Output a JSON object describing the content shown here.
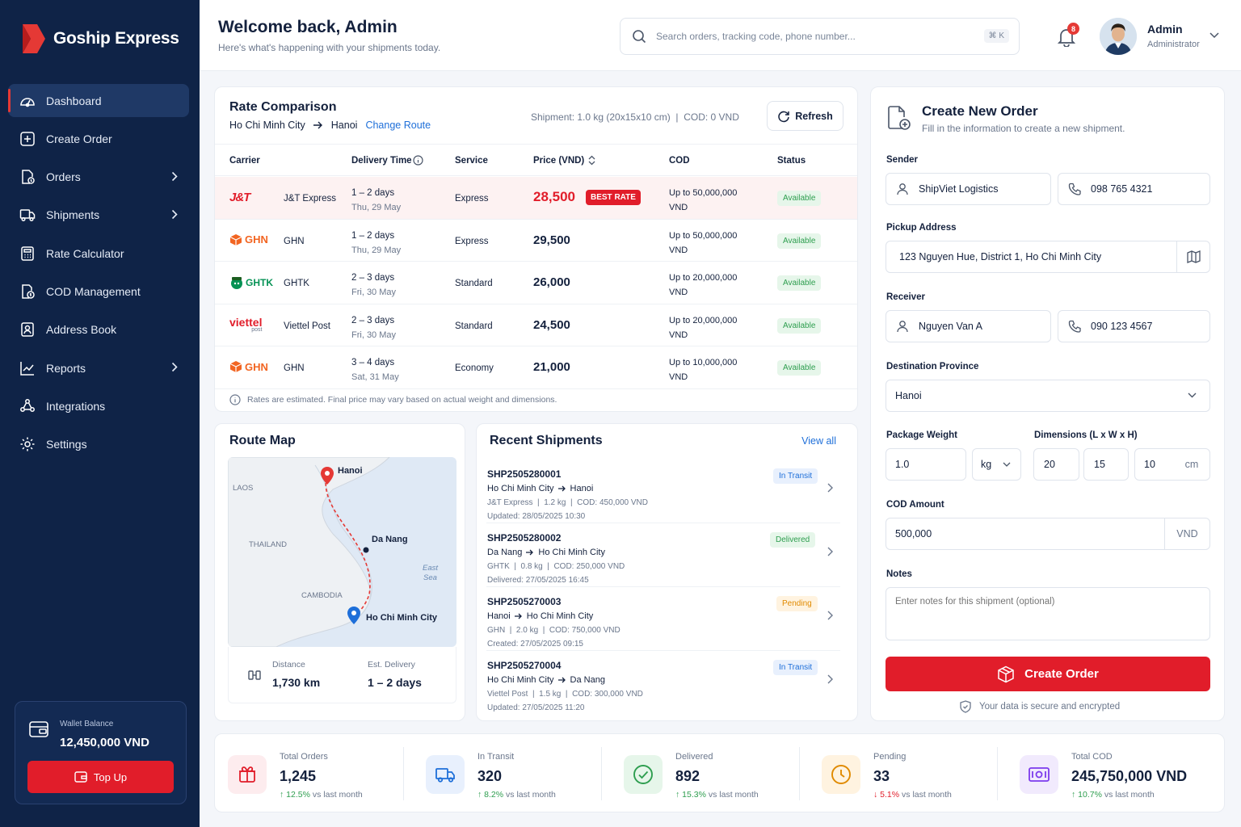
{
  "brand": {
    "name": "Goship Express",
    "accent": "#e11d2a",
    "sidebar_bg": "#0f2347"
  },
  "sidebar": {
    "items": [
      {
        "label": "Dashboard",
        "icon": "dashboard-icon",
        "active": true
      },
      {
        "label": "Create Order",
        "icon": "plus-square-icon"
      },
      {
        "label": "Orders",
        "icon": "orders-icon",
        "chevron": true
      },
      {
        "label": "Shipments",
        "icon": "truck-icon",
        "chevron": true
      },
      {
        "label": "Rate Calculator",
        "icon": "calculator-icon"
      },
      {
        "label": "COD Management",
        "icon": "cod-icon"
      },
      {
        "label": "Address Book",
        "icon": "address-book-icon"
      },
      {
        "label": "Reports",
        "icon": "chart-line-icon",
        "chevron": true
      },
      {
        "label": "Integrations",
        "icon": "integrations-icon"
      },
      {
        "label": "Settings",
        "icon": "gear-icon"
      }
    ],
    "wallet": {
      "label": "Wallet Balance",
      "value": "12,450,000 VND",
      "topup_label": "Top Up"
    }
  },
  "header": {
    "title": "Welcome back, Admin",
    "subtitle": "Here's what's happening with your shipments today.",
    "search_placeholder": "Search orders, tracking code, phone number...",
    "search_shortcut": "⌘ K",
    "notifications": "8",
    "user_name": "Admin",
    "user_role": "Administrator"
  },
  "rate": {
    "title": "Rate Comparison",
    "origin": "Ho Chi Minh City",
    "destination": "Hanoi",
    "change_route": "Change Route",
    "shipment_info": "Shipment: 1.0 kg (20x15x10 cm)  |  COD: 0 VND",
    "refresh_label": "Refresh",
    "columns": {
      "carrier": "Carrier",
      "delivery": "Delivery Time",
      "service": "Service",
      "price": "Price (VND)",
      "cod": "COD",
      "status": "Status"
    },
    "best_label": "BEST RATE",
    "rows": [
      {
        "carrier": "J&T Express",
        "logo": "J&T",
        "days": "1 – 2 days",
        "date": "Thu, 29 May",
        "service": "Express",
        "price": "28,500",
        "cod1": "Up to 50,000,000",
        "cod2": "VND",
        "status": "Available",
        "best": true
      },
      {
        "carrier": "GHN",
        "logo": "GHN",
        "days": "1 – 2 days",
        "date": "Thu, 29 May",
        "service": "Express",
        "price": "29,500",
        "cod1": "Up to 50,000,000",
        "cod2": "VND",
        "status": "Available"
      },
      {
        "carrier": "GHTK",
        "logo": "GHTK",
        "days": "2 – 3 days",
        "date": "Fri, 30 May",
        "service": "Standard",
        "price": "26,000",
        "cod1": "Up to 20,000,000",
        "cod2": "VND",
        "status": "Available"
      },
      {
        "carrier": "Viettel Post",
        "logo": "viettel",
        "logo_sub": "post",
        "days": "2 – 3 days",
        "date": "Fri, 30 May",
        "service": "Standard",
        "price": "24,500",
        "cod1": "Up to 20,000,000",
        "cod2": "VND",
        "status": "Available"
      },
      {
        "carrier": "GHN",
        "logo": "GHN",
        "days": "3 – 4 days",
        "date": "Sat, 31 May",
        "service": "Economy",
        "price": "21,000",
        "cod1": "Up to 10,000,000",
        "cod2": "VND",
        "status": "Available"
      }
    ],
    "note": "Rates are estimated. Final price may vary based on actual weight and dimensions."
  },
  "map": {
    "title": "Route Map",
    "labels": {
      "hanoi": "Hanoi",
      "danang": "Da Nang",
      "hcm": "Ho Chi Minh City",
      "laos": "LAOS",
      "thailand": "THAILAND",
      "cambodia": "CAMBODIA",
      "sea1": "East",
      "sea2": "Sea"
    },
    "distance_label": "Distance",
    "distance": "1,730 km",
    "delivery_label": "Est. Delivery",
    "delivery": "1 – 2 days"
  },
  "recent": {
    "title": "Recent Shipments",
    "view_all": "View all",
    "items": [
      {
        "id": "SHP2505280001",
        "from": "Ho Chi Minh City",
        "to": "Hanoi",
        "meta": "J&T Express  |  1.2 kg  |  COD: 450,000 VND",
        "date": "Updated: 28/05/2025 10:30",
        "status": "In Transit",
        "kind": "transit"
      },
      {
        "id": "SHP2505280002",
        "from": "Da Nang",
        "to": "Ho Chi Minh City",
        "meta": "GHTK  |  0.8 kg  |  COD: 250,000 VND",
        "date": "Delivered: 27/05/2025 16:45",
        "status": "Delivered",
        "kind": "deliv"
      },
      {
        "id": "SHP2505270003",
        "from": "Hanoi",
        "to": "Ho Chi Minh City",
        "meta": "GHN  |  2.0 kg  |  COD: 750,000 VND",
        "date": "Created: 27/05/2025 09:15",
        "status": "Pending",
        "kind": "pend"
      },
      {
        "id": "SHP2505270004",
        "from": "Ho Chi Minh City",
        "to": "Da Nang",
        "meta": "Viettel Post  |  1.5 kg  |  COD: 300,000 VND",
        "date": "Updated: 27/05/2025 11:20",
        "status": "In Transit",
        "kind": "transit"
      }
    ]
  },
  "create": {
    "title": "Create New Order",
    "subtitle": "Fill in the information to create a new shipment.",
    "sender_label": "Sender",
    "sender_name": "ShipViet Logistics",
    "sender_phone": "098 765 4321",
    "pickup_label": "Pickup Address",
    "pickup": "123 Nguyen Hue, District 1, Ho Chi Minh City",
    "receiver_label": "Receiver",
    "receiver_name": "Nguyen Van A",
    "receiver_phone": "090 123 4567",
    "dest_label": "Destination Province",
    "dest": "Hanoi",
    "weight_label": "Package Weight",
    "weight": "1.0",
    "weight_unit": "kg",
    "dims_label": "Dimensions (L x W x H)",
    "dim_l": "20",
    "dim_w": "15",
    "dim_h": "10",
    "dim_unit": "cm",
    "cod_label": "COD Amount",
    "cod": "500,000",
    "cod_unit": "VND",
    "notes_label": "Notes",
    "notes_placeholder": "Enter notes for this shipment (optional)",
    "submit": "Create Order",
    "secure": "Your data is secure and encrypted"
  },
  "stats": [
    {
      "label": "Total Orders",
      "value": "1,245",
      "change": "↑ 12.5%",
      "suffix": " vs last month",
      "color": "#e11d2a",
      "bg": "#fdecee",
      "icon": "package-icon",
      "trend": "up"
    },
    {
      "label": "In Transit",
      "value": "320",
      "change": "↑ 8.2%",
      "suffix": " vs last month",
      "color": "#1e6fd9",
      "bg": "#e8f0fd",
      "icon": "truck-icon",
      "trend": "up"
    },
    {
      "label": "Delivered",
      "value": "892",
      "change": "↑ 15.3%",
      "suffix": " vs last month",
      "color": "#2e9e4f",
      "bg": "#e6f6ea",
      "icon": "check-circle-icon",
      "trend": "up"
    },
    {
      "label": "Pending",
      "value": "33",
      "change": "↓ 5.1%",
      "suffix": " vs last month",
      "color": "#e08a00",
      "bg": "#fff3e0",
      "icon": "clock-icon",
      "trend": "down"
    },
    {
      "label": "Total COD",
      "value": "245,750,000 VND",
      "change": "↑ 10.7%",
      "suffix": " vs last month",
      "color": "#7c3aed",
      "bg": "#f1eafd",
      "icon": "cash-icon",
      "trend": "up"
    }
  ]
}
